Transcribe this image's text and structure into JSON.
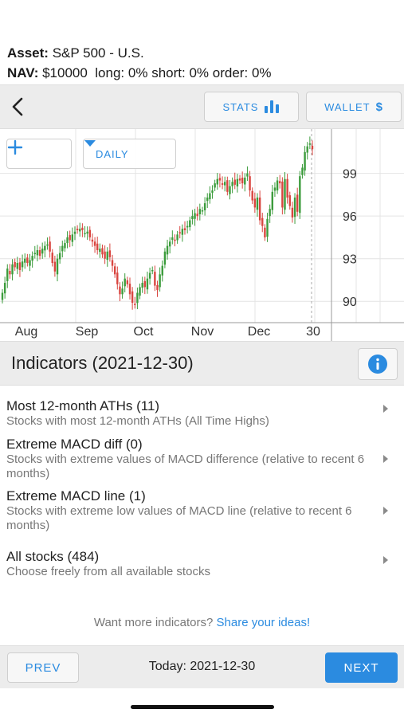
{
  "asset": {
    "label": "Asset:",
    "value": "S&P 500 - U.S."
  },
  "nav": {
    "label": "NAV:",
    "value": "$10000",
    "long_label": "long:",
    "long_value": "0%",
    "short_label": "short:",
    "short_value": "0%",
    "order_label": "order:",
    "order_value": "0%"
  },
  "toolbar": {
    "stats_label": "STATS",
    "wallet_label": "WALLET",
    "wallet_symbol": "$"
  },
  "chart_controls": {
    "period_label": "DAILY"
  },
  "chart_data": {
    "type": "candlestick",
    "x_labels": [
      "Aug",
      "Sep",
      "Oct",
      "Nov",
      "Dec",
      "30"
    ],
    "y_ticks": [
      90,
      93,
      96,
      99
    ],
    "ylim": [
      88.5,
      101.5
    ],
    "up_color": "#3c9c3c",
    "down_color": "#d9453f",
    "grid": true,
    "closes": [
      90.6,
      91.3,
      92.3,
      91.9,
      92.6,
      92.4,
      92.7,
      92.2,
      92.8,
      93.0,
      92.7,
      92.9,
      93.2,
      93.4,
      93.6,
      93.2,
      93.7,
      93.9,
      94.0,
      93.5,
      92.7,
      92.1,
      93.0,
      93.4,
      93.9,
      94.1,
      94.5,
      94.3,
      94.7,
      94.9,
      95.0,
      95.1,
      95.0,
      94.8,
      94.9,
      94.5,
      94.2,
      93.9,
      93.6,
      93.7,
      93.3,
      93.0,
      93.5,
      93.1,
      92.5,
      91.9,
      91.2,
      90.5,
      90.9,
      91.6,
      91.2,
      90.5,
      89.9,
      89.8,
      90.6,
      91.0,
      91.3,
      91.0,
      91.6,
      92.0,
      92.2,
      91.1,
      90.8,
      91.9,
      92.5,
      93.5,
      93.9,
      94.2,
      94.5,
      94.3,
      94.7,
      94.8,
      95.1,
      95.0,
      95.3,
      95.7,
      96.0,
      96.2,
      96.0,
      96.5,
      96.4,
      96.9,
      97.3,
      97.6,
      97.8,
      98.3,
      98.6,
      98.5,
      98.2,
      98.4,
      97.7,
      98.1,
      98.4,
      98.2,
      98.6,
      98.5,
      98.3,
      98.7,
      99.0,
      97.8,
      97.1,
      96.6,
      97.3,
      95.7,
      95.3,
      94.5,
      95.8,
      96.5,
      97.7,
      98.0,
      98.5,
      98.3,
      96.6,
      98.6,
      97.3,
      96.7,
      95.9,
      97.3,
      96.3,
      98.8,
      99.4,
      100.5,
      100.9,
      101.1,
      100.7
    ]
  },
  "indicators": {
    "title": "Indicators (2021-12-30)",
    "items": [
      {
        "title": "Most 12-month ATHs (11)",
        "desc": "Stocks with most 12-month ATHs (All Time Highs)"
      },
      {
        "title": "Extreme MACD diff (0)",
        "desc": "Stocks with extreme values of MACD difference (relative to recent 6 months)"
      },
      {
        "title": "Extreme MACD line (1)",
        "desc": "Stocks with extreme low values of MACD line (relative to recent 6 months)"
      },
      {
        "title": "All stocks (484)",
        "desc": "Choose freely from all available stocks"
      }
    ]
  },
  "more": {
    "text": "Want more indicators?",
    "link": "Share your ideas!"
  },
  "bottom": {
    "prev_label": "PREV",
    "today_label": "Today: 2021-12-30",
    "next_label": "NEXT"
  },
  "colors": {
    "accent": "#2b8be0",
    "bar_bg": "#ececec"
  }
}
